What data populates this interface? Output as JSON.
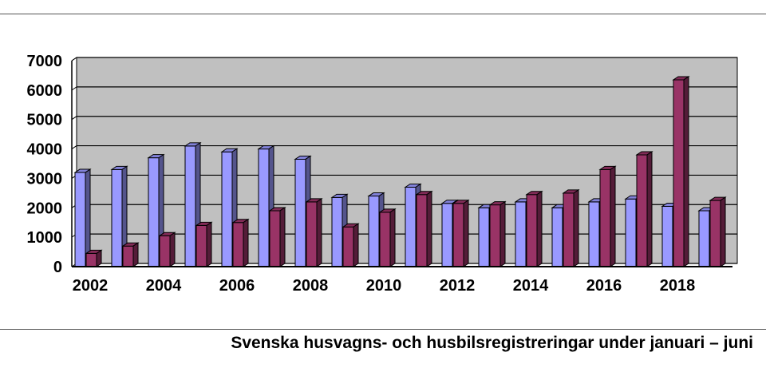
{
  "chart_data": {
    "type": "bar",
    "title": "",
    "caption": "Svenska husvagns- och husbilsregistreringar under januari – juni",
    "xlabel": "",
    "ylabel": "",
    "ylim": [
      0,
      7000
    ],
    "yticks": [
      "0",
      "1000",
      "2000",
      "3000",
      "4000",
      "5000",
      "6000",
      "7000"
    ],
    "categories": [
      "2002",
      "2003",
      "2004",
      "2005",
      "2006",
      "2007",
      "2008",
      "2009",
      "2010",
      "2011",
      "2012",
      "2013",
      "2014",
      "2015",
      "2016",
      "2017",
      "2018",
      "2019"
    ],
    "xtick_labels": [
      "2002",
      "2004",
      "2006",
      "2008",
      "2010",
      "2012",
      "2014",
      "2016",
      "2018"
    ],
    "grid": true,
    "legend": "none",
    "series": [
      {
        "color": "#9999ff",
        "values": [
          3200,
          3300,
          3700,
          4100,
          3900,
          4000,
          3650,
          2350,
          2400,
          2700,
          2150,
          2000,
          2200,
          2000,
          2200,
          2300,
          2050,
          1900
        ]
      },
      {
        "color": "#993366",
        "values": [
          450,
          700,
          1050,
          1400,
          1500,
          1900,
          2200,
          1350,
          1850,
          2450,
          2150,
          2100,
          2450,
          2500,
          3300,
          3800,
          6350,
          2250
        ]
      }
    ],
    "plot_background": "#c0c0c0"
  }
}
